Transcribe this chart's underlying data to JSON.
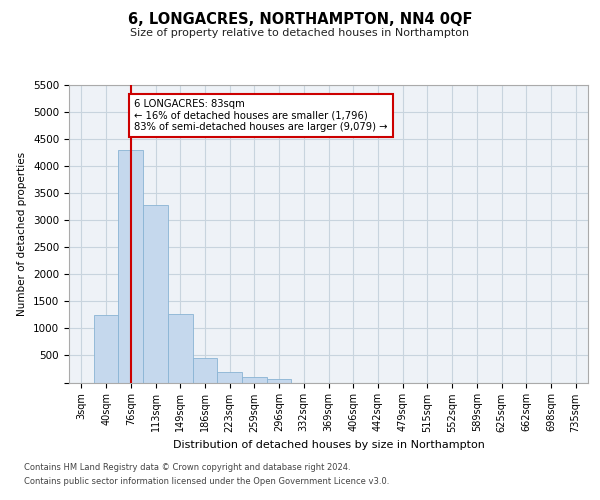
{
  "title": "6, LONGACRES, NORTHAMPTON, NN4 0QF",
  "subtitle": "Size of property relative to detached houses in Northampton",
  "xlabel": "Distribution of detached houses by size in Northampton",
  "ylabel": "Number of detached properties",
  "footer_line1": "Contains HM Land Registry data © Crown copyright and database right 2024.",
  "footer_line2": "Contains public sector information licensed under the Open Government Licence v3.0.",
  "bar_color": "#c5d8ed",
  "bar_edge_color": "#8ab4d4",
  "grid_color": "#c8d4de",
  "annotation_box_color": "#cc0000",
  "vline_color": "#cc0000",
  "categories": [
    "3sqm",
    "40sqm",
    "76sqm",
    "113sqm",
    "149sqm",
    "186sqm",
    "223sqm",
    "259sqm",
    "296sqm",
    "332sqm",
    "369sqm",
    "406sqm",
    "442sqm",
    "479sqm",
    "515sqm",
    "552sqm",
    "589sqm",
    "625sqm",
    "662sqm",
    "698sqm",
    "735sqm"
  ],
  "values": [
    0,
    1250,
    4300,
    3280,
    1270,
    460,
    185,
    95,
    60,
    0,
    0,
    0,
    0,
    0,
    0,
    0,
    0,
    0,
    0,
    0,
    0
  ],
  "ylim": [
    0,
    5500
  ],
  "yticks": [
    0,
    500,
    1000,
    1500,
    2000,
    2500,
    3000,
    3500,
    4000,
    4500,
    5000,
    5500
  ],
  "annotation_line1": "6 LONGACRES: 83sqm",
  "annotation_line2": "← 16% of detached houses are smaller (1,796)",
  "annotation_line3": "83% of semi-detached houses are larger (9,079) →",
  "vline_x_index": 2.0,
  "background_color": "#eef2f7"
}
